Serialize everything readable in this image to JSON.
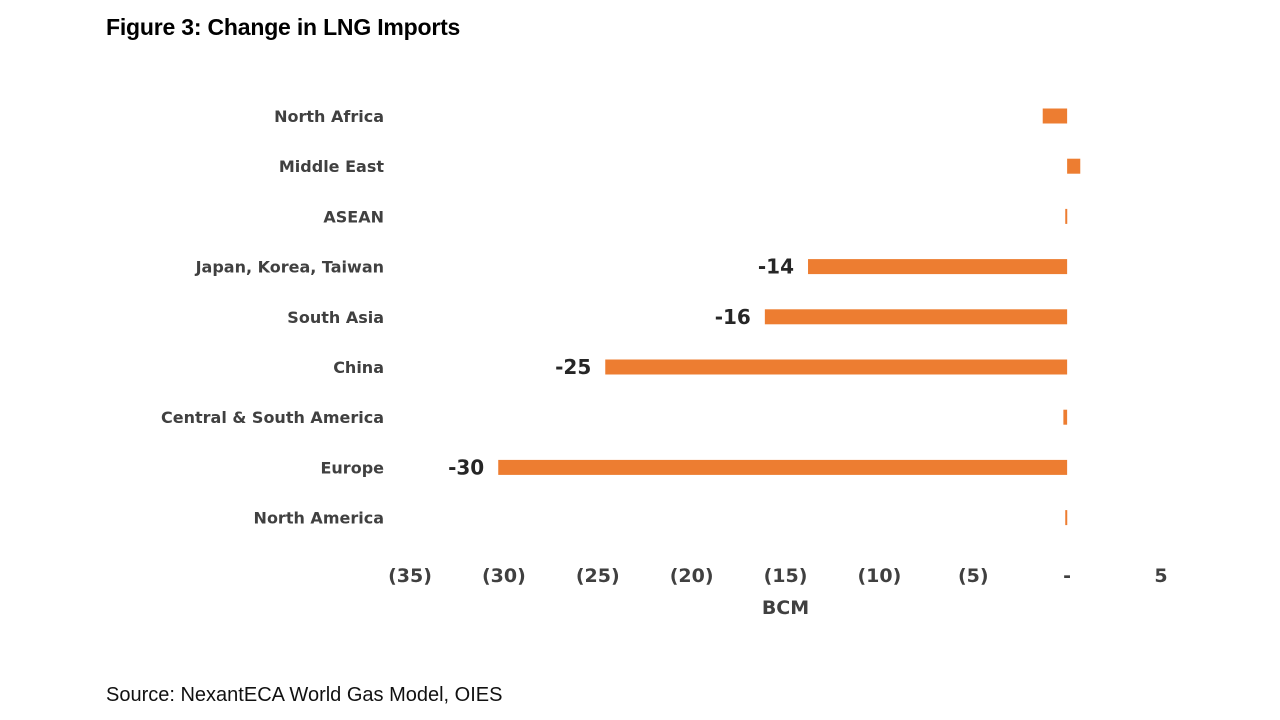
{
  "figure": {
    "title": "Figure 3: Change in LNG Imports",
    "source": "Source: NexantECA World Gas Model, OIES"
  },
  "chart_data": {
    "type": "bar",
    "orientation": "horizontal",
    "title": "Figure 3: Change in LNG Imports",
    "xlabel": "BCM",
    "ylabel": "",
    "xlim": [
      -35,
      5
    ],
    "xticks": [
      -35,
      -30,
      -25,
      -20,
      -15,
      -10,
      -5,
      0,
      5
    ],
    "xtick_labels": [
      "(35)",
      "(30)",
      "(25)",
      "(20)",
      "(15)",
      "(10)",
      "(5)",
      "-",
      "5"
    ],
    "categories": [
      "North Africa",
      "Middle East",
      "ASEAN",
      "Japan, Korea, Taiwan",
      "South Asia",
      "China",
      "Central & South America",
      "Europe",
      "North America"
    ],
    "values": [
      -1.3,
      0.7,
      -0.1,
      -13.8,
      -16.1,
      -24.6,
      -0.2,
      -30.3,
      -0.1
    ],
    "data_labels": [
      "",
      "",
      "",
      "-14",
      "-16",
      "-25",
      "",
      "-30",
      ""
    ],
    "bar_color": "#ED7D31",
    "grid": false
  }
}
